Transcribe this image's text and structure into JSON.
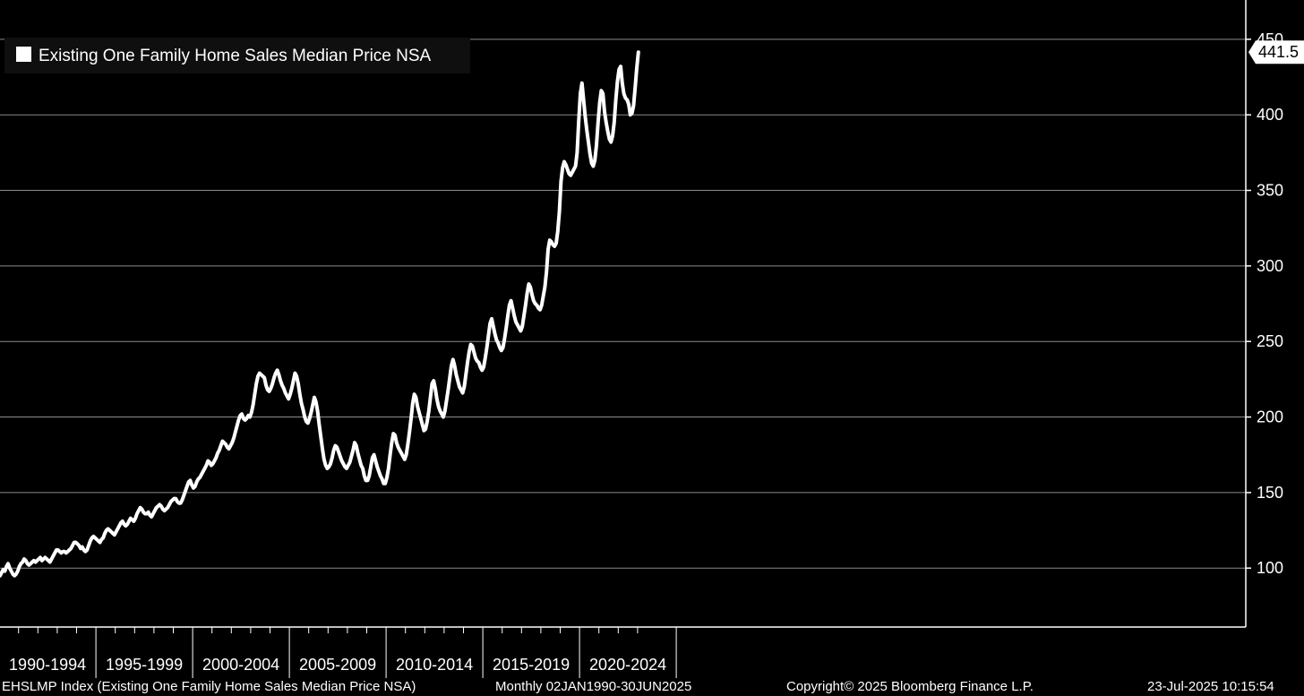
{
  "chart_data": {
    "type": "line",
    "legend": {
      "label": "Existing One Family Home Sales Median Price NSA",
      "position": "top-left"
    },
    "last_value_label": "441.5",
    "x_categories": [
      "1990-1994",
      "1995-1999",
      "2000-2004",
      "2005-2009",
      "2010-2014",
      "2015-2019",
      "2020-2024"
    ],
    "yticks": [
      100,
      150,
      200,
      250,
      300,
      350,
      400,
      450
    ],
    "ylim": [
      61,
      476
    ],
    "grid": true,
    "colors": {
      "background": "#000000",
      "line": "#ffffff",
      "grid": "#8a8a8a"
    },
    "series": [
      {
        "frequency": "monthly",
        "start": "1990-01",
        "values": [
          95,
          97,
          99,
          98,
          101,
          103,
          100,
          98,
          96,
          95,
          96,
          98,
          101,
          103,
          104,
          106,
          105,
          103,
          102,
          103,
          104,
          105,
          104,
          105,
          106,
          107,
          105,
          106,
          107,
          106,
          105,
          104,
          106,
          108,
          110,
          112,
          112,
          111,
          110,
          111,
          111,
          110,
          111,
          112,
          113,
          115,
          117,
          117,
          116,
          115,
          113,
          114,
          112,
          111,
          112,
          115,
          118,
          120,
          121,
          120,
          119,
          118,
          117,
          119,
          120,
          123,
          125,
          126,
          125,
          124,
          123,
          122,
          124,
          126,
          128,
          130,
          131,
          129,
          128,
          129,
          131,
          133,
          132,
          131,
          133,
          136,
          138,
          140,
          139,
          137,
          136,
          136,
          137,
          135,
          134,
          136,
          138,
          140,
          141,
          142,
          141,
          139,
          138,
          139,
          140,
          142,
          144,
          145,
          146,
          146,
          144,
          143,
          143,
          145,
          148,
          151,
          154,
          157,
          158,
          155,
          153,
          154,
          157,
          159,
          160,
          162,
          164,
          166,
          168,
          171,
          170,
          168,
          169,
          171,
          173,
          176,
          178,
          181,
          184,
          183,
          182,
          180,
          179,
          181,
          183,
          186,
          190,
          194,
          198,
          201,
          202,
          199,
          198,
          199,
          201,
          200,
          203,
          208,
          215,
          222,
          227,
          229,
          228,
          227,
          226,
          221,
          218,
          217,
          219,
          222,
          226,
          229,
          231,
          228,
          224,
          221,
          219,
          216,
          214,
          212,
          215,
          219,
          224,
          229,
          227,
          222,
          215,
          209,
          205,
          200,
          197,
          196,
          199,
          203,
          208,
          213,
          210,
          204,
          195,
          187,
          179,
          172,
          168,
          166,
          167,
          169,
          173,
          178,
          181,
          180,
          177,
          174,
          171,
          169,
          167,
          166,
          168,
          170,
          174,
          178,
          183,
          181,
          176,
          172,
          168,
          166,
          161,
          158,
          158,
          161,
          167,
          173,
          175,
          171,
          167,
          164,
          161,
          159,
          156,
          156,
          160,
          166,
          175,
          183,
          189,
          188,
          183,
          180,
          178,
          176,
          174,
          172,
          175,
          182,
          190,
          199,
          209,
          215,
          213,
          207,
          203,
          199,
          195,
          191,
          192,
          197,
          204,
          213,
          222,
          224,
          219,
          212,
          207,
          204,
          202,
          200,
          204,
          211,
          218,
          226,
          234,
          238,
          234,
          228,
          224,
          220,
          218,
          216,
          220,
          228,
          236,
          243,
          248,
          247,
          243,
          239,
          237,
          236,
          233,
          231,
          233,
          239,
          246,
          254,
          262,
          265,
          260,
          255,
          251,
          249,
          246,
          244,
          246,
          252,
          259,
          267,
          274,
          277,
          272,
          267,
          263,
          261,
          259,
          257,
          260,
          267,
          274,
          282,
          288,
          286,
          281,
          277,
          275,
          274,
          272,
          271,
          274,
          280,
          286,
          296,
          311,
          317,
          316,
          314,
          313,
          315,
          323,
          336,
          356,
          365,
          369,
          367,
          364,
          361,
          360,
          362,
          364,
          366,
          375,
          396,
          414,
          421,
          410,
          399,
          390,
          382,
          374,
          368,
          366,
          370,
          380,
          395,
          408,
          416,
          414,
          402,
          395,
          389,
          384,
          382,
          386,
          395,
          410,
          422,
          430,
          432,
          421,
          414,
          411,
          410,
          407,
          400,
          401,
          406,
          418,
          431,
          441.5
        ]
      }
    ]
  },
  "footer": {
    "index": "EHSLMP Index (Existing One Family Home Sales Median Price NSA)",
    "range": "Monthly 02JAN1990-30JUN2025",
    "copyright": "Copyright© 2025 Bloomberg Finance L.P.",
    "timestamp": "23-Jul-2025 10:15:54"
  }
}
